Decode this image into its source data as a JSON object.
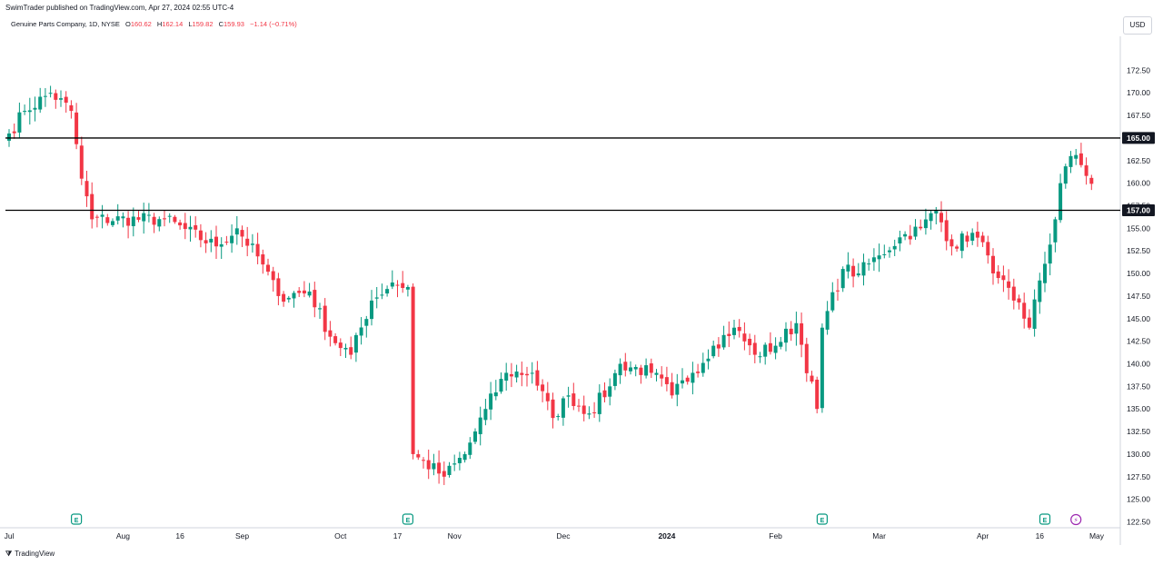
{
  "header": {
    "published": "SwimTrader published on TradingView.com, Apr 27, 2024 02:55 UTC-4",
    "symbol": "Genuine Parts Company, 1D, NYSE",
    "ohlc": {
      "o_label": "O",
      "o": "160.62",
      "h_label": "H",
      "h": "162.14",
      "l_label": "L",
      "l": "159.82",
      "c_label": "C",
      "c": "159.93",
      "change": "−1.14 (−0.71%)"
    },
    "currency": "USD"
  },
  "footer": {
    "brand": "TradingView",
    "logo_glyph": "⧩"
  },
  "colors": {
    "up": "#089981",
    "down": "#f23645",
    "text": "#131722",
    "grid": "#e0e3eb"
  },
  "chart_data": {
    "type": "candlestick",
    "title": "Genuine Parts Company, 1D, NYSE",
    "ylim": [
      122.5,
      175
    ],
    "y_ticks": [
      172.5,
      170,
      167.5,
      165,
      162.5,
      160,
      157.5,
      155,
      152.5,
      150,
      147.5,
      145,
      142.5,
      140,
      137.5,
      135,
      132.5,
      130,
      127.5,
      125,
      122.5
    ],
    "x_tick_labels": [
      {
        "label": "Jul",
        "session": 0,
        "bold": false
      },
      {
        "label": "Aug",
        "session": 22,
        "bold": false
      },
      {
        "label": "16",
        "session": 33,
        "bold": false
      },
      {
        "label": "Sep",
        "session": 45,
        "bold": false
      },
      {
        "label": "Oct",
        "session": 64,
        "bold": false
      },
      {
        "label": "17",
        "session": 75,
        "bold": false
      },
      {
        "label": "Nov",
        "session": 86,
        "bold": false
      },
      {
        "label": "Dec",
        "session": 107,
        "bold": false
      },
      {
        "label": "2024",
        "session": 127,
        "bold": true
      },
      {
        "label": "Feb",
        "session": 148,
        "bold": false
      },
      {
        "label": "Mar",
        "session": 168,
        "bold": false
      },
      {
        "label": "Apr",
        "session": 188,
        "bold": false
      },
      {
        "label": "16",
        "session": 199,
        "bold": false
      },
      {
        "label": "May",
        "session": 210,
        "bold": false
      }
    ],
    "horizontal_levels": [
      165.0,
      157.0
    ],
    "level_labels": [
      "165.00",
      "157.00"
    ],
    "event_markers": [
      {
        "type": "earnings",
        "glyph": "E",
        "session": 13
      },
      {
        "type": "earnings",
        "glyph": "E",
        "session": 77
      },
      {
        "type": "earnings",
        "glyph": "E",
        "session": 157
      },
      {
        "type": "earnings",
        "glyph": "E",
        "session": 200
      },
      {
        "type": "dividend",
        "glyph": "⚡",
        "session": 206
      }
    ],
    "key_points": [
      {
        "session": 0,
        "close": 165.5
      },
      {
        "session": 3,
        "close": 168.0
      },
      {
        "session": 8,
        "close": 170.0
      },
      {
        "session": 12,
        "close": 168.0
      },
      {
        "session": 14,
        "close": 160.5
      },
      {
        "session": 16,
        "close": 156.0
      },
      {
        "session": 30,
        "close": 156.0
      },
      {
        "session": 40,
        "close": 153.0
      },
      {
        "session": 44,
        "close": 155.0
      },
      {
        "session": 49,
        "close": 151.0
      },
      {
        "session": 52,
        "close": 147.5
      },
      {
        "session": 58,
        "close": 148.0
      },
      {
        "session": 62,
        "close": 143.0
      },
      {
        "session": 66,
        "close": 141.0
      },
      {
        "session": 70,
        "close": 147.0
      },
      {
        "session": 74,
        "close": 149.0
      },
      {
        "session": 77,
        "close": 148.5
      },
      {
        "session": 78,
        "close": 130.0
      },
      {
        "session": 84,
        "close": 127.5
      },
      {
        "session": 88,
        "close": 130.0
      },
      {
        "session": 92,
        "close": 135.0
      },
      {
        "session": 96,
        "close": 139.0
      },
      {
        "session": 101,
        "close": 139.0
      },
      {
        "session": 105,
        "close": 134.0
      },
      {
        "session": 108,
        "close": 136.5
      },
      {
        "session": 112,
        "close": 134.5
      },
      {
        "session": 116,
        "close": 137.5
      },
      {
        "session": 118,
        "close": 140.0
      },
      {
        "session": 124,
        "close": 139.0
      },
      {
        "session": 128,
        "close": 136.5
      },
      {
        "session": 132,
        "close": 139.0
      },
      {
        "session": 136,
        "close": 142.0
      },
      {
        "session": 140,
        "close": 144.0
      },
      {
        "session": 144,
        "close": 141.0
      },
      {
        "session": 148,
        "close": 142.0
      },
      {
        "session": 152,
        "close": 144.5
      },
      {
        "session": 156,
        "close": 135.0
      },
      {
        "session": 157,
        "close": 144.0
      },
      {
        "session": 161,
        "close": 150.5
      },
      {
        "session": 164,
        "close": 150.0
      },
      {
        "session": 168,
        "close": 152.0
      },
      {
        "session": 172,
        "close": 154.0
      },
      {
        "session": 176,
        "close": 155.0
      },
      {
        "session": 179,
        "close": 157.0
      },
      {
        "session": 182,
        "close": 153.0
      },
      {
        "session": 186,
        "close": 154.5
      },
      {
        "session": 189,
        "close": 152.0
      },
      {
        "session": 191,
        "close": 149.5
      },
      {
        "session": 194,
        "close": 147.0
      },
      {
        "session": 196,
        "close": 145.0
      },
      {
        "session": 197,
        "close": 144.0
      },
      {
        "session": 202,
        "close": 156.0
      },
      {
        "session": 203,
        "close": 160.0
      },
      {
        "session": 205,
        "close": 163.0
      },
      {
        "session": 207,
        "close": 162.0
      },
      {
        "session": 209,
        "close": 159.93
      }
    ]
  }
}
